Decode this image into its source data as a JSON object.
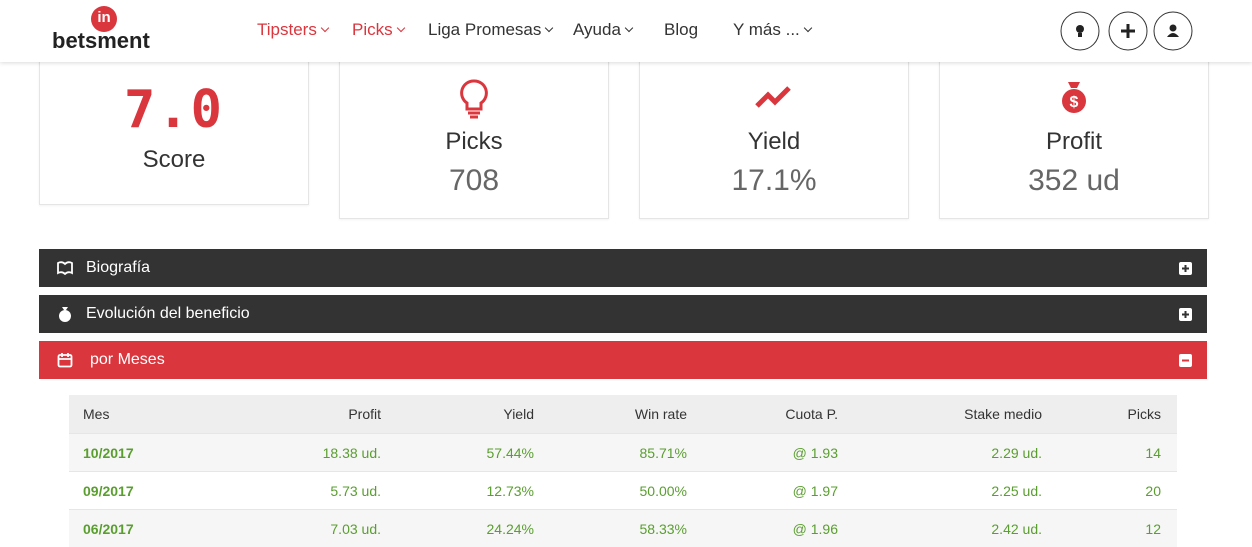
{
  "nav": {
    "logo_badge": "in",
    "logo": "betsment",
    "items": [
      "Tipsters",
      "Picks",
      "Liga Promesas",
      "Ayuda",
      "Blog",
      "Y más ..."
    ]
  },
  "stats": [
    {
      "value": "7.0",
      "label": "Score"
    },
    {
      "label": "Picks",
      "value": "708"
    },
    {
      "label": "Yield",
      "value": "17.1%"
    },
    {
      "label": "Profit",
      "value": "352 ud"
    }
  ],
  "panels": [
    "Biografía",
    "Evolución del beneficio",
    "por Meses"
  ],
  "table": {
    "header": [
      "Mes",
      "Profit",
      "Yield",
      "Win rate",
      "Cuota P.",
      "Stake medio",
      "Picks"
    ],
    "rows": [
      [
        "10/2017",
        "18.38 ud.",
        "57.44%",
        "85.71%",
        "@ 1.93",
        "2.29 ud.",
        "14"
      ],
      [
        "09/2017",
        "5.73 ud.",
        "12.73%",
        "50.00%",
        "@ 1.97",
        "2.25 ud.",
        "20"
      ],
      [
        "06/2017",
        "7.03 ud.",
        "24.24%",
        "58.33%",
        "@ 1.96",
        "2.42 ud.",
        "12"
      ]
    ]
  }
}
